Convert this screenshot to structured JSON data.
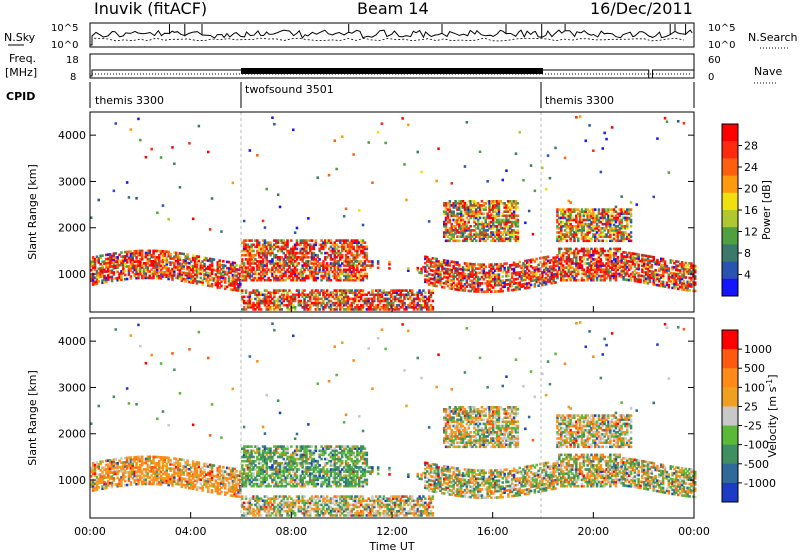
{
  "header": {
    "station": "Inuvik (fitACF)",
    "beam": "Beam 14",
    "date": "16/Dec/2011"
  },
  "strip": {
    "nsky_label": "N.Sky",
    "nsky_ticks": [
      "10^5",
      "10^0"
    ],
    "nsearch_label": "N.Search",
    "nsearch_ticks": [
      "10^5",
      "10^0"
    ],
    "freq_label": "Freq.",
    "freq_unit": "[MHz]",
    "freq_ticks": [
      "18",
      "8"
    ],
    "nave_label": "Nave",
    "nave_ticks": [
      "60",
      "0"
    ],
    "cpid_label": "CPID",
    "cpid_segments": [
      "themis 3300",
      "twofsound 3501",
      "themis 3300"
    ]
  },
  "chart_data": [
    {
      "type": "heatmap",
      "title": "",
      "xlabel": "",
      "ylabel": "Slant Range [km]",
      "x_ticks": [
        "00:00",
        "04:00",
        "08:00",
        "12:00",
        "16:00",
        "20:00",
        "00:00"
      ],
      "x_range_hours": [
        0,
        24
      ],
      "y_ticks": [
        1000,
        2000,
        3000,
        4000
      ],
      "y_range_km": [
        180,
        4500
      ],
      "colorbar": {
        "label": "Power [dB]",
        "ticks": [
          "4",
          "8",
          "12",
          "16",
          "20",
          "24",
          "28"
        ],
        "range": [
          0,
          30
        ],
        "colors": [
          "#1414ff",
          "#2a52b0",
          "#3b7a6a",
          "#4fa040",
          "#b0c830",
          "#f0e010",
          "#ff9a10",
          "#ff6010",
          "#ff2a10",
          "#ff0000"
        ]
      },
      "echo_bands_description": "main band near 1000 km all day; near-range band 200-600 km between 06:00 and 13:30; scattered echoes up to 4400 km"
    },
    {
      "type": "heatmap",
      "title": "",
      "xlabel": "Time UT",
      "ylabel": "Slant Range [km]",
      "x_ticks": [
        "00:00",
        "04:00",
        "08:00",
        "12:00",
        "16:00",
        "20:00",
        "00:00"
      ],
      "x_range_hours": [
        0,
        24
      ],
      "y_ticks": [
        1000,
        2000,
        3000,
        4000
      ],
      "y_range_km": [
        180,
        4500
      ],
      "colorbar": {
        "label": "Velocity [m s^-1]",
        "label_parts": [
          "Velocity ",
          "[m s",
          "-1",
          "]"
        ],
        "ticks": [
          "1000",
          "500",
          "100",
          "25",
          "-25",
          "-100",
          "-500",
          "-1000"
        ],
        "colors": [
          "#1c3cc8",
          "#2f6a9a",
          "#3f8f60",
          "#5cb838",
          "#c8c8c8",
          "#f0a020",
          "#ff8a1a",
          "#ff5a10",
          "#ff0000"
        ]
      }
    }
  ]
}
